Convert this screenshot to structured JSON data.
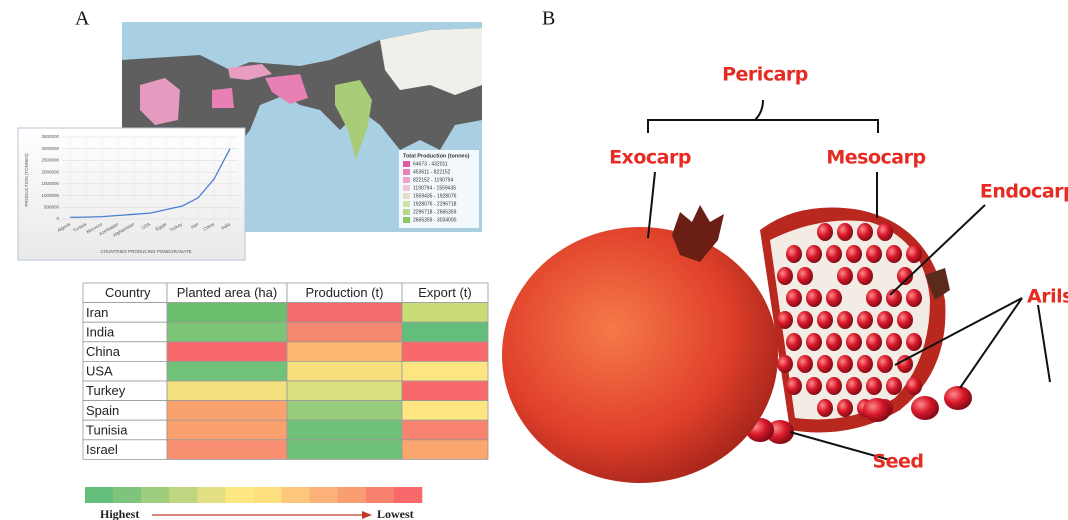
{
  "panels": {
    "a": "A",
    "b": "B"
  },
  "map": {
    "legend_title": "Total Production (tonnes)",
    "legend": [
      {
        "label": "64673 - 432011",
        "color": "#e05aa0"
      },
      {
        "label": "453611 - 822152",
        "color": "#e880b6"
      },
      {
        "label": "822152 - 1190794",
        "color": "#eea4c8"
      },
      {
        "label": "1190794 - 1559435",
        "color": "#f2c4d8"
      },
      {
        "label": "1559435 - 1928076",
        "color": "#e4e0c6"
      },
      {
        "label": "1928076 - 2296718",
        "color": "#cfe2a8"
      },
      {
        "label": "2296718 - 2665359",
        "color": "#b4d884"
      },
      {
        "label": "2665359 - 3034000",
        "color": "#8cc860"
      }
    ]
  },
  "chart_data": {
    "type": "line",
    "y_label": "PRODUCTION (TONNES)",
    "x_label": "COUNTRIES PRODUCING POMEGRANATE",
    "categories": [
      "Algeria",
      "Tunisia",
      "Morocco",
      "Azerbaijan",
      "Afghanistan",
      "USA",
      "Egypt",
      "Turkey",
      "Iran",
      "China",
      "India"
    ],
    "values": [
      70000,
      80000,
      100000,
      150000,
      200000,
      250000,
      400000,
      550000,
      900000,
      1700000,
      3000000
    ],
    "color": "#4a7fd0",
    "ylim": [
      0,
      3500000
    ],
    "yticks": [
      0,
      500000,
      1000000,
      1500000,
      2000000,
      2500000,
      3000000,
      3500000
    ],
    "grid": true
  },
  "table": {
    "header": [
      "Country",
      "Planted area (ha)",
      "Production (t)",
      "Export (t)"
    ],
    "rows": [
      "Iran",
      "India",
      "China",
      "USA",
      "Turkey",
      "Spain",
      "Tunisia",
      "Israel"
    ],
    "cell_colors": [
      [
        "#6bbf6c",
        "#f46c6c",
        "#c9dc78"
      ],
      [
        "#7cc576",
        "#f5886f",
        "#63be7b"
      ],
      [
        "#f8696b",
        "#fbb66f",
        "#f8696b"
      ],
      [
        "#70c278",
        "#f9e07f",
        "#fde582"
      ],
      [
        "#f5e07f",
        "#d9e07e",
        "#f8696b"
      ],
      [
        "#f9a26e",
        "#98cd7e",
        "#fde582"
      ],
      [
        "#f9a06e",
        "#6fc178",
        "#f8846f"
      ],
      [
        "#f78f70",
        "#6ec078",
        "#fba56f"
      ]
    ]
  },
  "scale": {
    "colors": [
      "#63be7b",
      "#7ec47d",
      "#9fcd7e",
      "#c0d680",
      "#e2e083",
      "#fde783",
      "#fde07f",
      "#fcc67b",
      "#fbb177",
      "#f99d72",
      "#f9826f",
      "#f8696b"
    ],
    "start": "Highest",
    "end": "Lowest"
  },
  "fruit": {
    "pericarp": "Pericarp",
    "exocarp": "Exocarp",
    "mesocarp": "Mesocarp",
    "endocarp": "Endocarp",
    "arils": "Arils",
    "seed": "Seed"
  }
}
